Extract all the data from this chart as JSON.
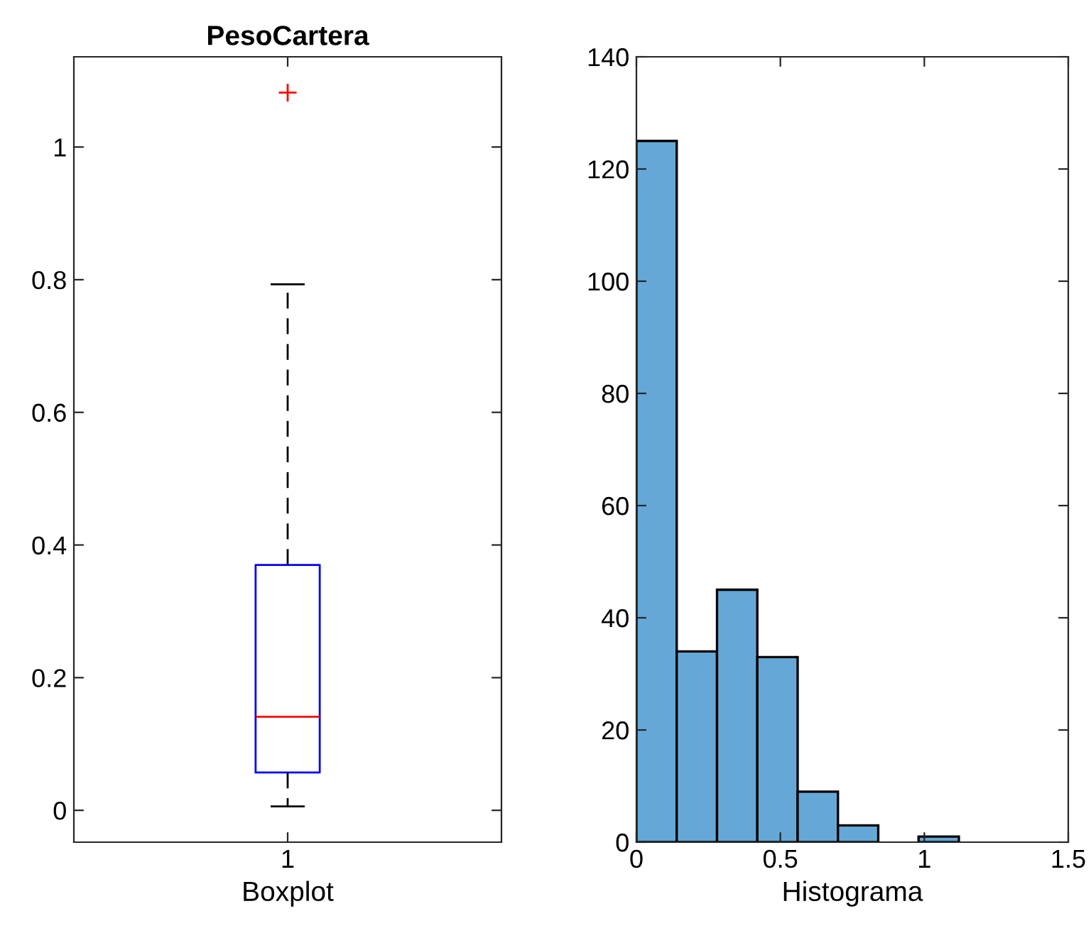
{
  "chart_data": [
    {
      "type": "box",
      "title": "PesoCartera",
      "xlabel": "Boxplot",
      "categories": [
        "1"
      ],
      "boxes": [
        {
          "low": 0.006,
          "q1": 0.057,
          "median": 0.141,
          "q3": 0.37,
          "high": 0.793,
          "outliers": [
            1.082
          ]
        }
      ],
      "ylim": [
        -0.048,
        1.136
      ],
      "yticks": [
        0,
        0.2,
        0.4,
        0.6,
        0.8,
        1
      ],
      "grid": false
    },
    {
      "type": "histogram",
      "xlabel": "Histograma",
      "color": "#65a8d8",
      "bins": [
        0,
        0.14,
        0.28,
        0.42,
        0.56,
        0.7,
        0.84,
        0.98,
        1.12
      ],
      "values": [
        125,
        34,
        45,
        33,
        9,
        3,
        0,
        1
      ],
      "xlim": [
        0,
        1.5
      ],
      "xticks": [
        0,
        0.5,
        1,
        1.5
      ],
      "ylim": [
        0,
        140
      ],
      "yticks": [
        0,
        20,
        40,
        60,
        80,
        100,
        120,
        140
      ],
      "grid": false
    }
  ]
}
